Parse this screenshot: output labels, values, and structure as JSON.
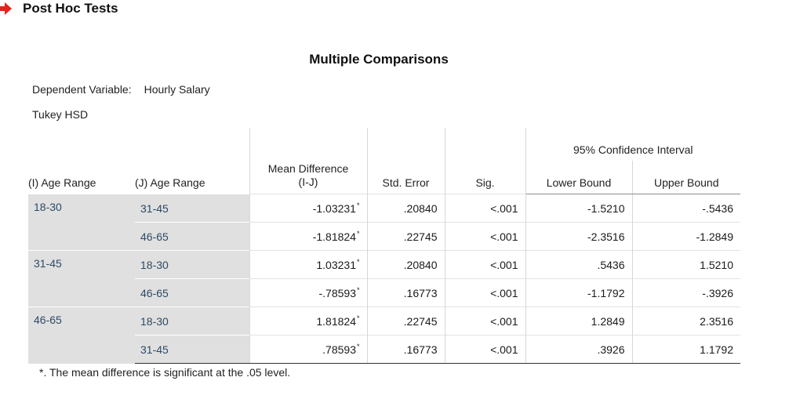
{
  "section_heading": "Post Hoc Tests",
  "table_title": "Multiple Comparisons",
  "dependent_variable_label": "Dependent Variable:",
  "dependent_variable_value": "Hourly Salary",
  "method": "Tukey HSD",
  "columns": {
    "i_age_range": "(I) Age Range",
    "j_age_range": "(J) Age Range",
    "mean_difference": "Mean Difference (I-J)",
    "std_error": "Std. Error",
    "sig": "Sig.",
    "confidence_interval": "95% Confidence Interval",
    "lower_bound": "Lower Bound",
    "upper_bound": "Upper Bound"
  },
  "groups": [
    {
      "i": "18-30",
      "rows": [
        {
          "j": "31-45",
          "mean_diff": "-1.03231",
          "marker": "*",
          "std_error": ".20840",
          "sig": "<.001",
          "lower": "-1.5210",
          "upper": "-.5436"
        },
        {
          "j": "46-65",
          "mean_diff": "-1.81824",
          "marker": "*",
          "std_error": ".22745",
          "sig": "<.001",
          "lower": "-2.3516",
          "upper": "-1.2849"
        }
      ]
    },
    {
      "i": "31-45",
      "rows": [
        {
          "j": "18-30",
          "mean_diff": "1.03231",
          "marker": "*",
          "std_error": ".20840",
          "sig": "<.001",
          "lower": ".5436",
          "upper": "1.5210"
        },
        {
          "j": "46-65",
          "mean_diff": "-.78593",
          "marker": "*",
          "std_error": ".16773",
          "sig": "<.001",
          "lower": "-1.1792",
          "upper": "-.3926"
        }
      ]
    },
    {
      "i": "46-65",
      "rows": [
        {
          "j": "18-30",
          "mean_diff": "1.81824",
          "marker": "*",
          "std_error": ".22745",
          "sig": "<.001",
          "lower": "1.2849",
          "upper": "2.3516"
        },
        {
          "j": "31-45",
          "mean_diff": ".78593",
          "marker": "*",
          "std_error": ".16773",
          "sig": "<.001",
          "lower": ".3926",
          "upper": "1.1792"
        }
      ]
    }
  ],
  "footnote": "*. The mean difference is significant at the .05 level.",
  "colors": {
    "arrow": "#e8211c",
    "label_cell_bg": "#e0e0e0",
    "label_text": "#2c4a66"
  },
  "icons": {
    "section_marker": "red-right-arrow-icon"
  }
}
